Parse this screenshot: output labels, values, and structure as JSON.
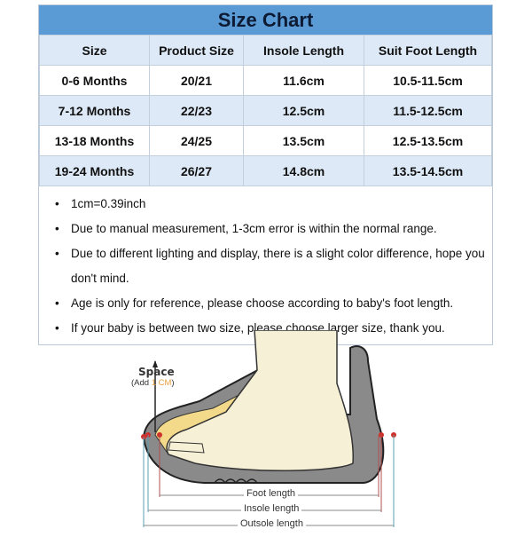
{
  "title": "Size Chart",
  "headers": [
    "Size",
    "Product Size",
    "Insole Length",
    "Suit Foot Length"
  ],
  "rows": [
    [
      "0-6 Months",
      "20/21",
      "11.6cm",
      "10.5-11.5cm"
    ],
    [
      "7-12 Months",
      "22/23",
      "12.5cm",
      "11.5-12.5cm"
    ],
    [
      "13-18 Months",
      "24/25",
      "13.5cm",
      "12.5-13.5cm"
    ],
    [
      "19-24 Months",
      "26/27",
      "14.8cm",
      "13.5-14.5cm"
    ]
  ],
  "notes": [
    "1cm=0.39inch",
    "Due to manual measurement, 1-3cm error is within the normal range.",
    "Due to different lighting and display, there is a slight color difference, hope you",
    "don't mind.",
    "Age is only for reference, please choose according to baby's foot length.",
    "If your baby is between two size, please choose larger size, thank you."
  ],
  "bullet": "•",
  "diagram": {
    "space_label": "Space",
    "add_prefix": "(Add ",
    "add_value": "1 CM",
    "add_suffix": ")",
    "foot_length": "Foot length",
    "insole_length": "Insole length",
    "outsole_length": "Outsole length"
  },
  "colors": {
    "header_blue": "#5b9bd5",
    "row_alt": "#dde9f6",
    "accent_orange": "#e8a040",
    "marker_red": "#d0302a"
  }
}
